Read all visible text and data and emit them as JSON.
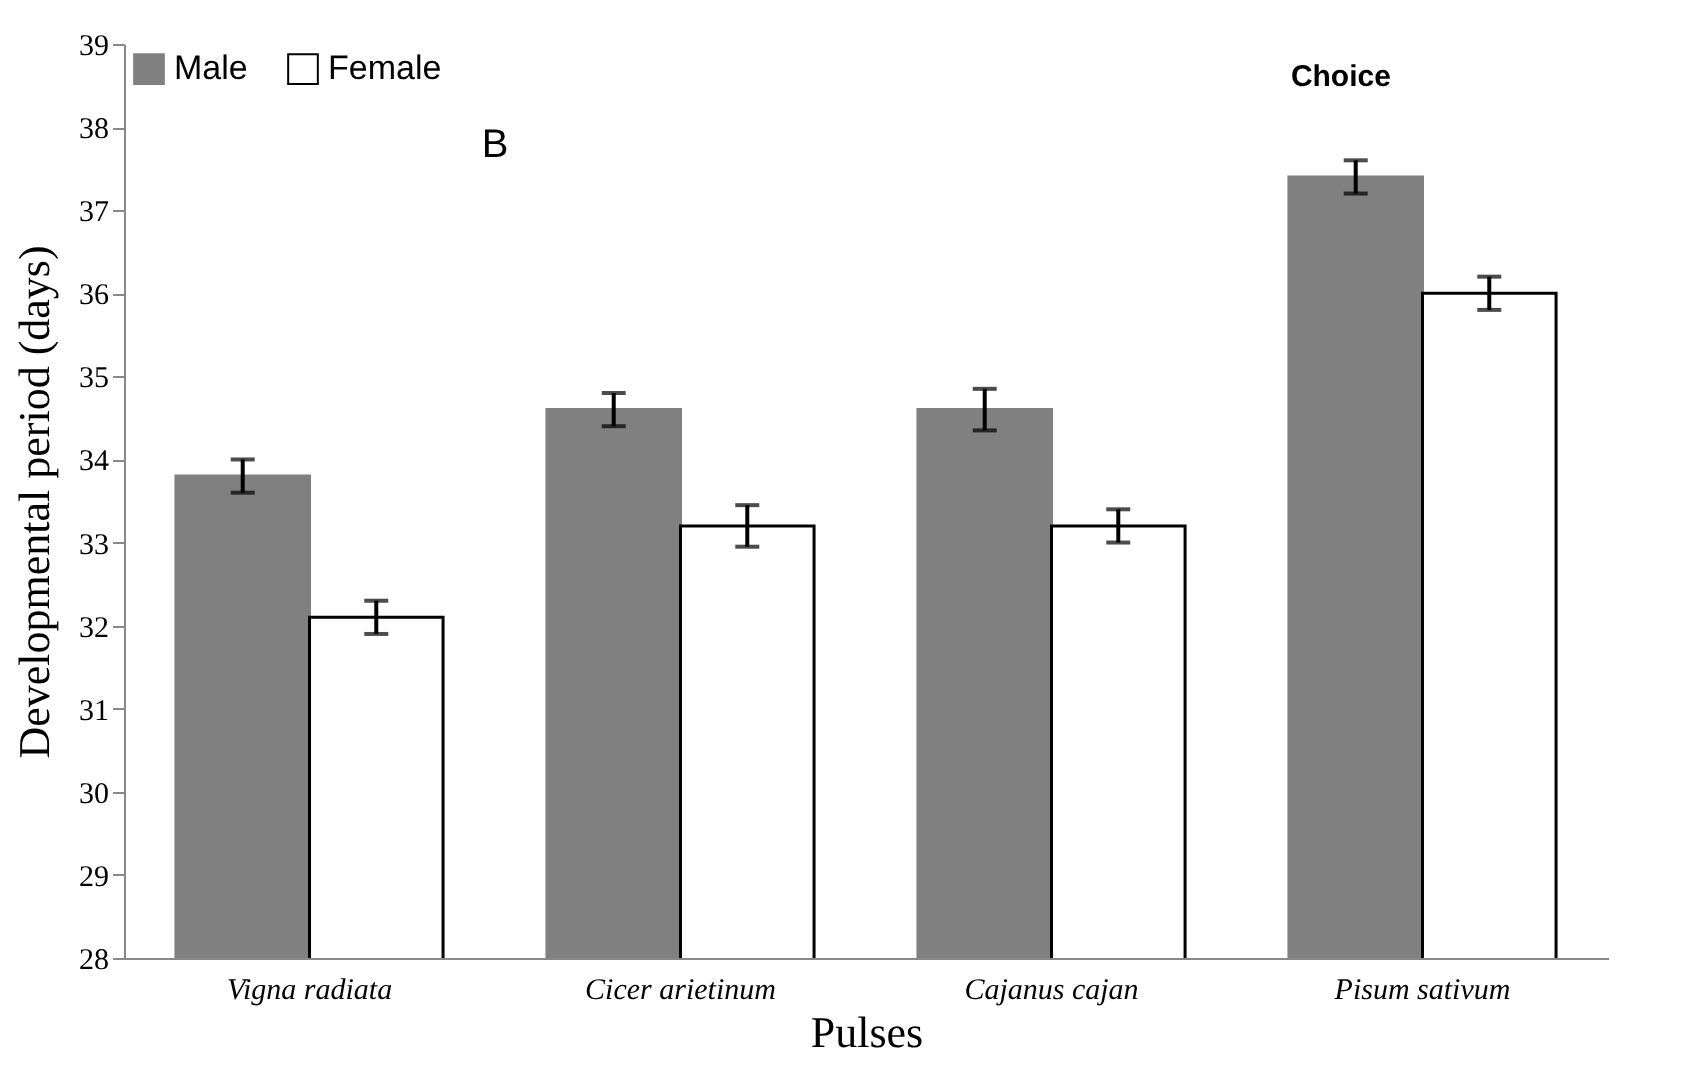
{
  "chart_data": {
    "type": "bar",
    "xlabel": "Pulses",
    "ylabel": "Developmental period (days)",
    "annotations": [
      "B",
      "Choice"
    ],
    "categories": [
      "Vigna radiata",
      "Cicer arietinum",
      "Cajanus cajan",
      "Pisum sativum"
    ],
    "series": [
      {
        "name": "Male",
        "color": "#808080",
        "values": [
          33.8,
          34.6,
          34.6,
          37.4
        ],
        "errors": [
          0.2,
          0.2,
          0.25,
          0.2
        ]
      },
      {
        "name": "Female",
        "color": "#ffffff",
        "values": [
          32.1,
          33.2,
          33.2,
          36.0
        ],
        "errors": [
          0.2,
          0.25,
          0.2,
          0.2
        ]
      }
    ],
    "ylim": [
      28,
      39
    ],
    "yticks": [
      28,
      29,
      30,
      31,
      32,
      33,
      34,
      35,
      36,
      37,
      38,
      39
    ],
    "grid": false,
    "legend": "top left"
  }
}
